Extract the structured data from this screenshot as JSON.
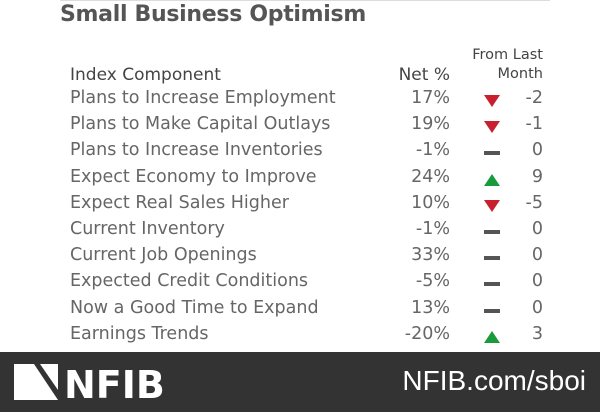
{
  "title": "Small Business Optimism",
  "headers": {
    "component": "Index Component",
    "net": "Net %",
    "change_line1": "From Last",
    "change_line2": "Month"
  },
  "rows": [
    {
      "label": "Plans to Increase Employment",
      "net": "17%",
      "direction": "down",
      "change": "-2"
    },
    {
      "label": "Plans to Make Capital Outlays",
      "net": "19%",
      "direction": "down",
      "change": "-1"
    },
    {
      "label": "Plans to Increase Inventories",
      "net": "-1%",
      "direction": "flat",
      "change": "0"
    },
    {
      "label": "Expect Economy to Improve",
      "net": "24%",
      "direction": "up",
      "change": "9"
    },
    {
      "label": "Expect Real Sales Higher",
      "net": "10%",
      "direction": "down",
      "change": "-5"
    },
    {
      "label": "Current Inventory",
      "net": "-1%",
      "direction": "flat",
      "change": "0"
    },
    {
      "label": "Current Job Openings",
      "net": "33%",
      "direction": "flat",
      "change": "0"
    },
    {
      "label": "Expected Credit Conditions",
      "net": "-5%",
      "direction": "flat",
      "change": "0"
    },
    {
      "label": "Now a Good Time to Expand",
      "net": "13%",
      "direction": "flat",
      "change": "0"
    },
    {
      "label": "Earnings Trends",
      "net": "-20%",
      "direction": "up",
      "change": "3"
    }
  ],
  "colors": {
    "down": "#c8202f",
    "up": "#1a9a3a",
    "flat": "#555555",
    "footer": "#333333"
  },
  "footer": {
    "logo_text": "NFIB",
    "url": "NFIB.com/sboi"
  }
}
